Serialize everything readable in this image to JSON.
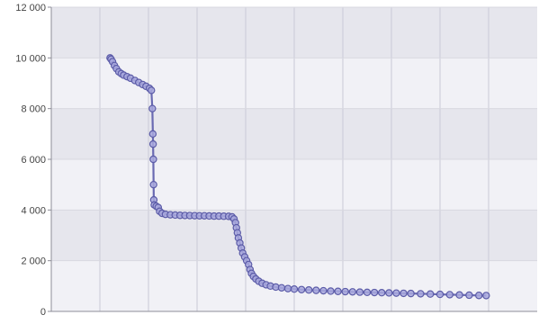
{
  "chart_data": {
    "type": "scatter",
    "title": "",
    "xlabel": "",
    "ylabel": "",
    "ylim": [
      0,
      12000
    ],
    "xlim": [
      0,
      100
    ],
    "y_ticks": [
      0,
      2000,
      4000,
      6000,
      8000,
      10000,
      12000
    ],
    "y_tick_labels": [
      "0",
      "2 000",
      "4 000",
      "6 000",
      "8 000",
      "10 000",
      "12 000"
    ],
    "x_tick_labels": [],
    "grid": true,
    "legend": "none",
    "colors": {
      "plot_band_light": "#f1f1f6",
      "plot_band_dark": "#e6e6ed",
      "series_fill": "#a8a8dd",
      "series_stroke": "#5c5ca8",
      "series_line": "#6a6ab2"
    },
    "series": [
      {
        "points": [
          [
            12.1,
            10000
          ],
          [
            12.3,
            9950
          ],
          [
            12.6,
            9850
          ],
          [
            13.0,
            9700
          ],
          [
            13.4,
            9580
          ],
          [
            13.9,
            9450
          ],
          [
            14.4,
            9380
          ],
          [
            14.9,
            9320
          ],
          [
            15.6,
            9260
          ],
          [
            16.3,
            9200
          ],
          [
            17.2,
            9110
          ],
          [
            18.0,
            9030
          ],
          [
            18.8,
            8950
          ],
          [
            19.5,
            8880
          ],
          [
            20.2,
            8800
          ],
          [
            20.6,
            8720
          ],
          [
            20.8,
            8000
          ],
          [
            20.9,
            7000
          ],
          [
            20.95,
            6600
          ],
          [
            21.0,
            6000
          ],
          [
            21.05,
            5000
          ],
          [
            21.1,
            4400
          ],
          [
            21.2,
            4200
          ],
          [
            21.6,
            4150
          ],
          [
            22.0,
            4100
          ],
          [
            22.3,
            3950
          ],
          [
            22.8,
            3870
          ],
          [
            23.5,
            3830
          ],
          [
            24.5,
            3810
          ],
          [
            25.5,
            3800
          ],
          [
            26.5,
            3790
          ],
          [
            27.5,
            3785
          ],
          [
            28.5,
            3780
          ],
          [
            29.5,
            3775
          ],
          [
            30.5,
            3770
          ],
          [
            31.5,
            3770
          ],
          [
            32.5,
            3765
          ],
          [
            33.5,
            3760
          ],
          [
            34.5,
            3760
          ],
          [
            35.5,
            3755
          ],
          [
            36.5,
            3750
          ],
          [
            37.2,
            3730
          ],
          [
            37.6,
            3650
          ],
          [
            37.9,
            3500
          ],
          [
            38.1,
            3300
          ],
          [
            38.3,
            3100
          ],
          [
            38.5,
            2900
          ],
          [
            38.8,
            2700
          ],
          [
            39.1,
            2500
          ],
          [
            39.4,
            2300
          ],
          [
            39.8,
            2150
          ],
          [
            40.2,
            2000
          ],
          [
            40.6,
            1850
          ],
          [
            40.9,
            1650
          ],
          [
            41.2,
            1500
          ],
          [
            41.6,
            1380
          ],
          [
            42.1,
            1280
          ],
          [
            42.7,
            1190
          ],
          [
            43.4,
            1110
          ],
          [
            44.2,
            1050
          ],
          [
            45.1,
            1000
          ],
          [
            46.2,
            960
          ],
          [
            47.4,
            930
          ],
          [
            48.7,
            900
          ],
          [
            50.0,
            880
          ],
          [
            51.5,
            860
          ],
          [
            53.0,
            845
          ],
          [
            54.5,
            830
          ],
          [
            56.0,
            815
          ],
          [
            57.5,
            800
          ],
          [
            59.0,
            790
          ],
          [
            60.5,
            780
          ],
          [
            62.0,
            770
          ],
          [
            63.5,
            760
          ],
          [
            65.0,
            752
          ],
          [
            66.5,
            745
          ],
          [
            68.0,
            738
          ],
          [
            69.5,
            730
          ],
          [
            71.0,
            722
          ],
          [
            72.5,
            714
          ],
          [
            74.0,
            706
          ],
          [
            76.0,
            695
          ],
          [
            78.0,
            685
          ],
          [
            80.0,
            672
          ],
          [
            82.0,
            660
          ],
          [
            84.0,
            650
          ],
          [
            86.0,
            640
          ],
          [
            88.0,
            630
          ],
          [
            89.5,
            625
          ]
        ]
      }
    ]
  }
}
